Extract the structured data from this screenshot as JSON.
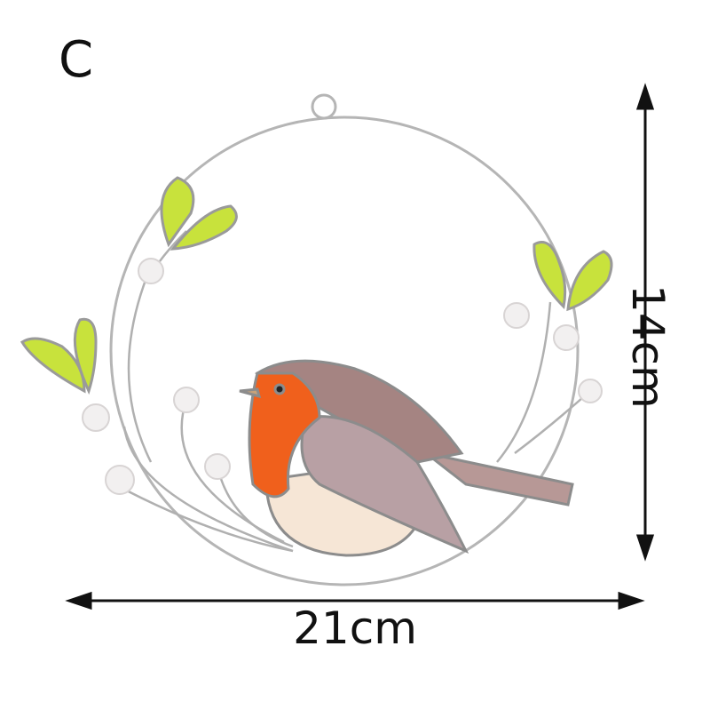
{
  "variant_label": "C",
  "dimensions": {
    "height": "14cm",
    "width": "21cm"
  },
  "colors": {
    "ring": "#b8b8b8",
    "leaf": "#c8e23c",
    "bird_head": "#f0601c",
    "bird_belly": "#f6e6d6",
    "bird_wing": "#b8a0a4",
    "bird_back": "#a58482",
    "arrow": "#111111"
  }
}
